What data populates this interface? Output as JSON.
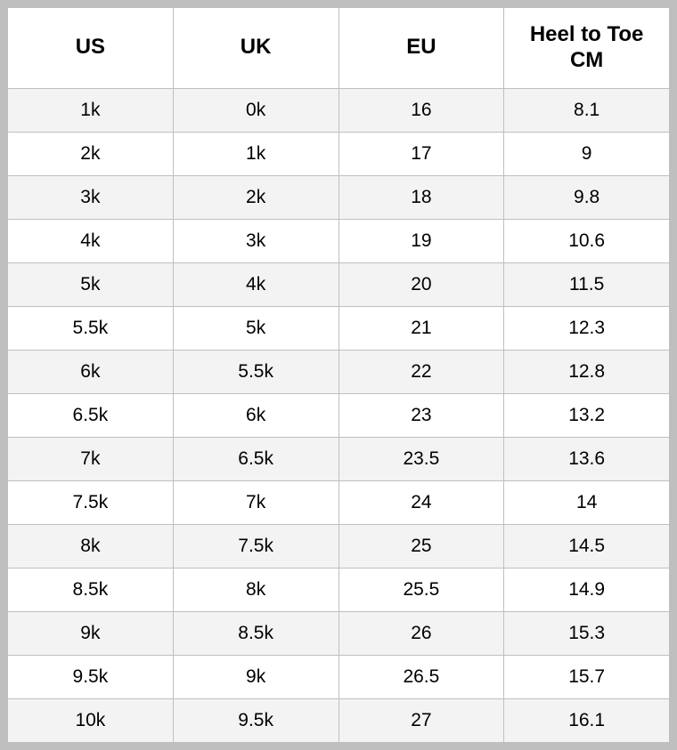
{
  "table": {
    "type": "table",
    "columns": [
      "US",
      "UK",
      "EU",
      "Heel to Toe CM"
    ],
    "rows": [
      [
        "1k",
        "0k",
        "16",
        "8.1"
      ],
      [
        "2k",
        "1k",
        "17",
        "9"
      ],
      [
        "3k",
        "2k",
        "18",
        "9.8"
      ],
      [
        "4k",
        "3k",
        "19",
        "10.6"
      ],
      [
        "5k",
        "4k",
        "20",
        "11.5"
      ],
      [
        "5.5k",
        "5k",
        "21",
        "12.3"
      ],
      [
        "6k",
        "5.5k",
        "22",
        "12.8"
      ],
      [
        "6.5k",
        "6k",
        "23",
        "13.2"
      ],
      [
        "7k",
        "6.5k",
        "23.5",
        "13.6"
      ],
      [
        "7.5k",
        "7k",
        "24",
        "14"
      ],
      [
        "8k",
        "7.5k",
        "25",
        "14.5"
      ],
      [
        "8.5k",
        "8k",
        "25.5",
        "14.9"
      ],
      [
        "9k",
        "8.5k",
        "26",
        "15.3"
      ],
      [
        "9.5k",
        "9k",
        "26.5",
        "15.7"
      ],
      [
        "10k",
        "9.5k",
        "27",
        "16.1"
      ]
    ],
    "styling": {
      "border_color": "#bfbfbf",
      "page_background": "#bfbfbf",
      "header_background": "#ffffff",
      "row_odd_background": "#f3f3f3",
      "row_even_background": "#ffffff",
      "text_color": "#000000",
      "header_font_size_pt": 18,
      "header_font_weight": 700,
      "cell_font_size_pt": 16,
      "cell_font_weight": 400,
      "column_count": 4,
      "column_widths_equal": true,
      "text_align": "center"
    }
  }
}
